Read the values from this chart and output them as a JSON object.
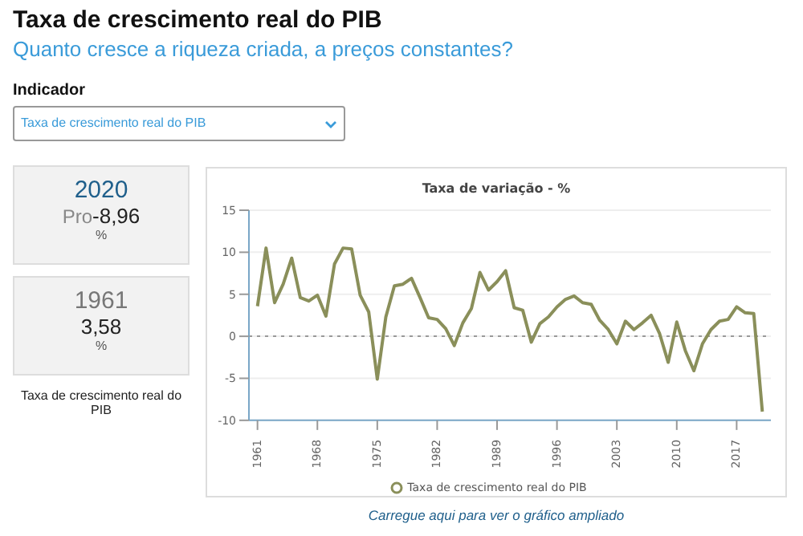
{
  "chart_data": {
    "type": "line",
    "title": "Taxa de variação - %",
    "annotations": [
      "Taxa de crescimento real do PIB",
      "Quanto cresce a riqueza criada, a preços constantes?",
      "Indicador",
      "Taxa de crescimento real do PIB",
      "2020",
      "Pro",
      "-8,96",
      "%",
      "1961",
      "3,58",
      "%",
      "Taxa de crescimento real do PIB",
      "Carregue aqui para ver o gráfico ampliado"
    ],
    "x": [
      1961,
      1962,
      1963,
      1964,
      1965,
      1966,
      1967,
      1968,
      1969,
      1970,
      1971,
      1972,
      1973,
      1974,
      1975,
      1976,
      1977,
      1978,
      1979,
      1980,
      1981,
      1982,
      1983,
      1984,
      1985,
      1986,
      1987,
      1988,
      1989,
      1990,
      1991,
      1992,
      1993,
      1994,
      1995,
      1996,
      1997,
      1998,
      1999,
      2000,
      2001,
      2002,
      2003,
      2004,
      2005,
      2006,
      2007,
      2008,
      2009,
      2010,
      2011,
      2012,
      2013,
      2014,
      2015,
      2016,
      2017,
      2018,
      2019,
      2020
    ],
    "series": [
      {
        "name": "Taxa de crescimento real do PIB",
        "color": "#8a8f5a",
        "values": [
          3.58,
          10.5,
          4.0,
          6.2,
          9.3,
          4.6,
          4.2,
          4.9,
          2.4,
          8.6,
          10.5,
          10.4,
          4.9,
          2.9,
          -5.1,
          2.3,
          6.0,
          6.2,
          6.9,
          4.6,
          2.2,
          2.0,
          0.9,
          -1.1,
          1.6,
          3.3,
          7.6,
          5.5,
          6.5,
          7.8,
          3.4,
          3.1,
          -0.7,
          1.5,
          2.3,
          3.5,
          4.4,
          4.8,
          4.0,
          3.8,
          1.9,
          0.8,
          -0.9,
          1.8,
          0.8,
          1.6,
          2.5,
          0.3,
          -3.1,
          1.7,
          -1.7,
          -4.1,
          -0.9,
          0.8,
          1.8,
          2.0,
          3.5,
          2.8,
          2.7,
          -8.96
        ]
      }
    ],
    "xlim": [
      1960,
      2021
    ],
    "xticks": [
      1961,
      1968,
      1975,
      1982,
      1989,
      1996,
      2003,
      2010,
      2017
    ],
    "ylim": [
      -10,
      15
    ],
    "yticks": [
      -10,
      -5,
      0,
      5,
      10,
      15
    ],
    "grid": "y",
    "legend": "bottom",
    "marker": "none",
    "line_style": "solid",
    "ref_lines": [
      {
        "axis": "y",
        "value": 0,
        "line_style": "dotted",
        "color": "#999999"
      }
    ]
  }
}
